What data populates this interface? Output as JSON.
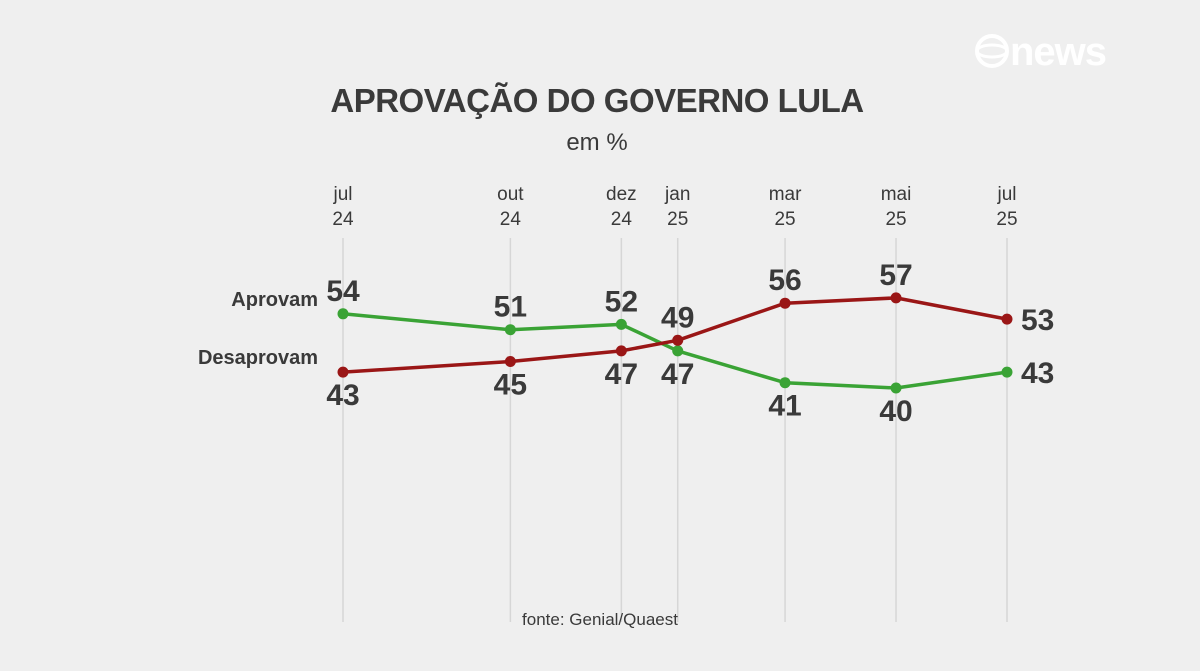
{
  "chart_data": {
    "type": "line",
    "title": "APROVAÇÃO DO GOVERNO LULA",
    "subtitle": "em %",
    "source": "fonte: Genial/Quaest",
    "x": [
      {
        "month": "jul",
        "year": "24",
        "date": "2024-07-01"
      },
      {
        "month": "out",
        "year": "24",
        "date": "2024-10-01"
      },
      {
        "month": "dez",
        "year": "24",
        "date": "2024-12-01"
      },
      {
        "month": "jan",
        "year": "25",
        "date": "2025-01-01"
      },
      {
        "month": "mar",
        "year": "25",
        "date": "2025-03-01"
      },
      {
        "month": "mai",
        "year": "25",
        "date": "2025-05-01"
      },
      {
        "month": "jul",
        "year": "25",
        "date": "2025-07-01"
      }
    ],
    "series": [
      {
        "name": "Aprovam",
        "color": "#3aa335",
        "values": [
          54,
          51,
          52,
          47,
          41,
          40,
          43
        ]
      },
      {
        "name": "Desaprovam",
        "color": "#9a1616",
        "values": [
          43,
          45,
          47,
          49,
          56,
          57,
          53
        ]
      }
    ],
    "gridlines": "vertical"
  },
  "logo": {
    "text": "news",
    "icon": "globo-circle-icon"
  }
}
